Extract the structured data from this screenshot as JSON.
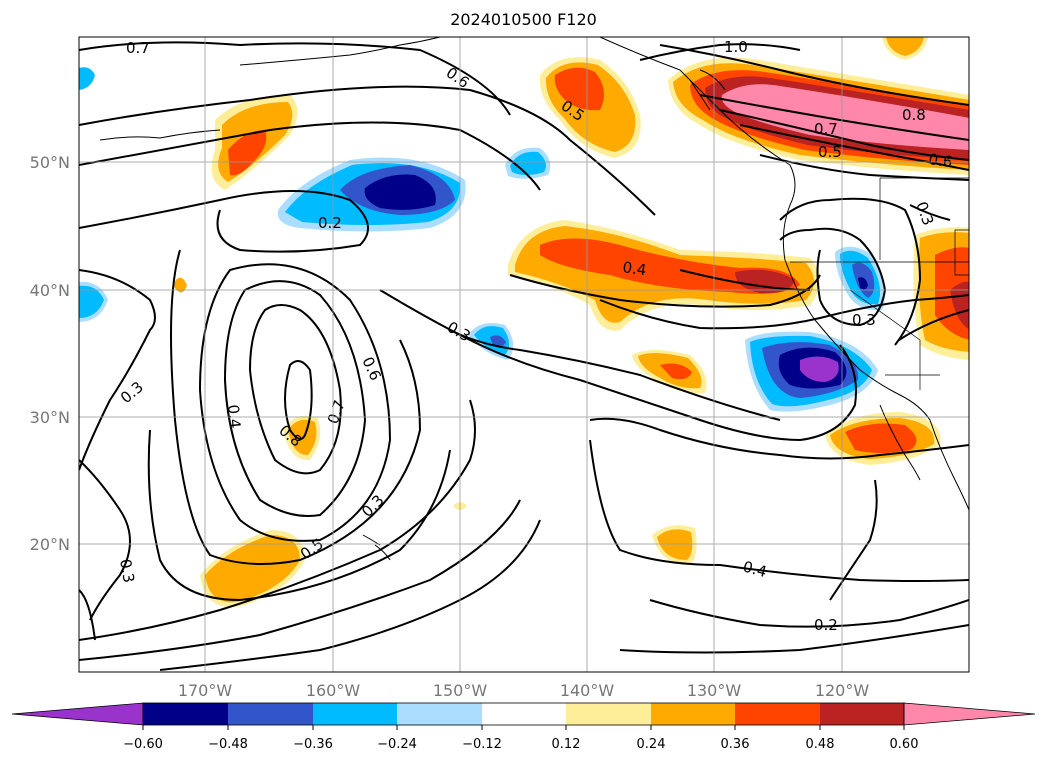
{
  "title": "2024010500 F120",
  "map": {
    "lat_labels": [
      "50°N",
      "40°N",
      "30°N",
      "20°N"
    ],
    "lon_labels": [
      "170°W",
      "160°W",
      "150°W",
      "140°W",
      "130°W",
      "120°W"
    ],
    "contour_labels": [
      "0.7",
      "0.6",
      "1.0",
      "0.5",
      "0.8",
      "0.7",
      "0.5",
      "0.6",
      "0.3",
      "0.2",
      "0.4",
      "0.3",
      "0.3",
      "0.3",
      "0.6",
      "0.4",
      "0.7",
      "0.8",
      "0.3",
      "0.5",
      "0.3",
      "0.4",
      "0.2"
    ]
  },
  "colorbar": {
    "tick_labels": [
      "−0.60",
      "−0.48",
      "−0.36",
      "−0.24",
      "−0.12",
      "0.12",
      "0.24",
      "0.36",
      "0.48",
      "0.60"
    ],
    "colors": [
      "#9933cc",
      "#000088",
      "#3355cc",
      "#00bbff",
      "#aaddff",
      "#ffffff",
      "#ffee99",
      "#ffaa00",
      "#ff4400",
      "#bb2222",
      "#ff88aa"
    ]
  }
}
